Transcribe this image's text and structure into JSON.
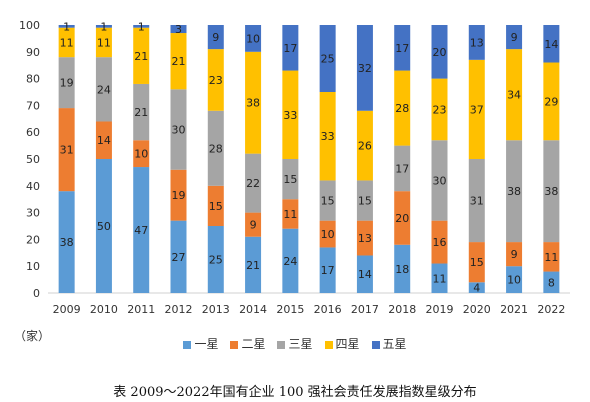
{
  "chart_data": {
    "type": "bar",
    "stacked": true,
    "categories": [
      "2009",
      "2010",
      "2011",
      "2012",
      "2013",
      "2014",
      "2015",
      "2016",
      "2017",
      "2018",
      "2019",
      "2020",
      "2021",
      "2022"
    ],
    "series": [
      {
        "name": "一星",
        "color": "#5B9BD5",
        "values": [
          38,
          50,
          47,
          27,
          25,
          21,
          24,
          17,
          14,
          18,
          11,
          4,
          10,
          8
        ]
      },
      {
        "name": "二星",
        "color": "#ED7D31",
        "values": [
          31,
          14,
          10,
          19,
          15,
          9,
          11,
          10,
          13,
          20,
          16,
          15,
          9,
          11
        ]
      },
      {
        "name": "三星",
        "color": "#A5A5A5",
        "values": [
          19,
          24,
          21,
          30,
          28,
          22,
          15,
          15,
          15,
          17,
          30,
          31,
          38,
          38
        ]
      },
      {
        "name": "四星",
        "color": "#FFC000",
        "values": [
          11,
          11,
          21,
          21,
          23,
          38,
          33,
          33,
          26,
          28,
          23,
          37,
          34,
          29
        ]
      },
      {
        "name": "五星",
        "color": "#4472C4",
        "values": [
          1,
          1,
          1,
          3,
          9,
          10,
          17,
          25,
          32,
          17,
          20,
          13,
          9,
          14
        ]
      }
    ],
    "ylim": [
      0,
      100
    ],
    "yticks": [
      0,
      10,
      20,
      30,
      40,
      50,
      60,
      70,
      80,
      90,
      100
    ],
    "ylabel": "（家）",
    "grid": false,
    "legend_position": "bottom",
    "title": "表 2009～2022年国有企业 100 强社会责任发展指数星级分布"
  }
}
